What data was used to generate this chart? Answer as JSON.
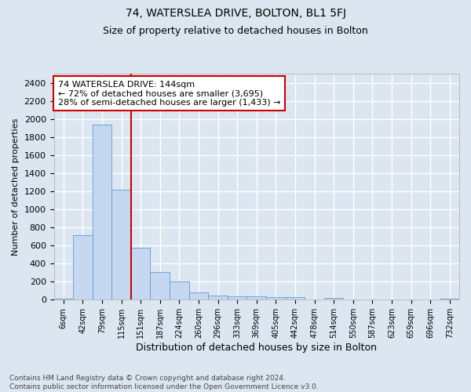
{
  "title_main": "74, WATERSLEA DRIVE, BOLTON, BL1 5FJ",
  "title_sub": "Size of property relative to detached houses in Bolton",
  "xlabel": "Distribution of detached houses by size in Bolton",
  "ylabel": "Number of detached properties",
  "categories": [
    "6sqm",
    "42sqm",
    "79sqm",
    "115sqm",
    "151sqm",
    "187sqm",
    "224sqm",
    "260sqm",
    "296sqm",
    "333sqm",
    "369sqm",
    "405sqm",
    "442sqm",
    "478sqm",
    "514sqm",
    "550sqm",
    "587sqm",
    "623sqm",
    "659sqm",
    "696sqm",
    "732sqm"
  ],
  "values": [
    15,
    710,
    1940,
    1220,
    575,
    310,
    205,
    85,
    50,
    40,
    35,
    30,
    25,
    5,
    20,
    5,
    5,
    5,
    5,
    5,
    15
  ],
  "bar_color": "#c5d8f0",
  "bar_edge_color": "#5b9bd5",
  "vline_x": 3.5,
  "vline_color": "#cc0000",
  "annotation_text": "74 WATERSLEA DRIVE: 144sqm\n← 72% of detached houses are smaller (3,695)\n28% of semi-detached houses are larger (1,433) →",
  "annotation_box_color": "#ffffff",
  "annotation_box_edge_color": "#cc0000",
  "ylim": [
    0,
    2500
  ],
  "yticks": [
    0,
    200,
    400,
    600,
    800,
    1000,
    1200,
    1400,
    1600,
    1800,
    2000,
    2200,
    2400
  ],
  "background_color": "#dce6f1",
  "grid_color": "#ffffff",
  "footer": "Contains HM Land Registry data © Crown copyright and database right 2024.\nContains public sector information licensed under the Open Government Licence v3.0."
}
